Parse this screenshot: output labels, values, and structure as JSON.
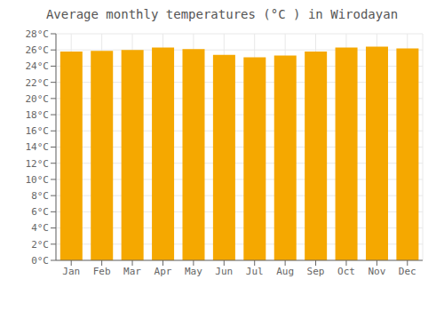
{
  "chart_data": {
    "type": "bar",
    "title": "Average monthly temperatures (°C ) in Wirodayan",
    "categories": [
      "Jan",
      "Feb",
      "Mar",
      "Apr",
      "May",
      "Jun",
      "Jul",
      "Aug",
      "Sep",
      "Oct",
      "Nov",
      "Dec"
    ],
    "values": [
      25.8,
      25.9,
      26.0,
      26.3,
      26.1,
      25.4,
      25.1,
      25.3,
      25.8,
      26.3,
      26.4,
      26.2
    ],
    "color": "#F5A800",
    "ylim": [
      0,
      28
    ],
    "yticks": [
      {
        "value": 0,
        "label": "0°C"
      },
      {
        "value": 2,
        "label": "2°C"
      },
      {
        "value": 4,
        "label": "4°C"
      },
      {
        "value": 6,
        "label": "6°C"
      },
      {
        "value": 8,
        "label": "8°C"
      },
      {
        "value": 10,
        "label": "10°C"
      },
      {
        "value": 12,
        "label": "12°C"
      },
      {
        "value": 14,
        "label": "14°C"
      },
      {
        "value": 16,
        "label": "16°C"
      },
      {
        "value": 18,
        "label": "18°C"
      },
      {
        "value": 20,
        "label": "20°C"
      },
      {
        "value": 22,
        "label": "22°C"
      },
      {
        "value": 24,
        "label": "24°C"
      },
      {
        "value": 26,
        "label": "26°C"
      },
      {
        "value": 28,
        "label": "28°C"
      }
    ],
    "grid": true
  }
}
